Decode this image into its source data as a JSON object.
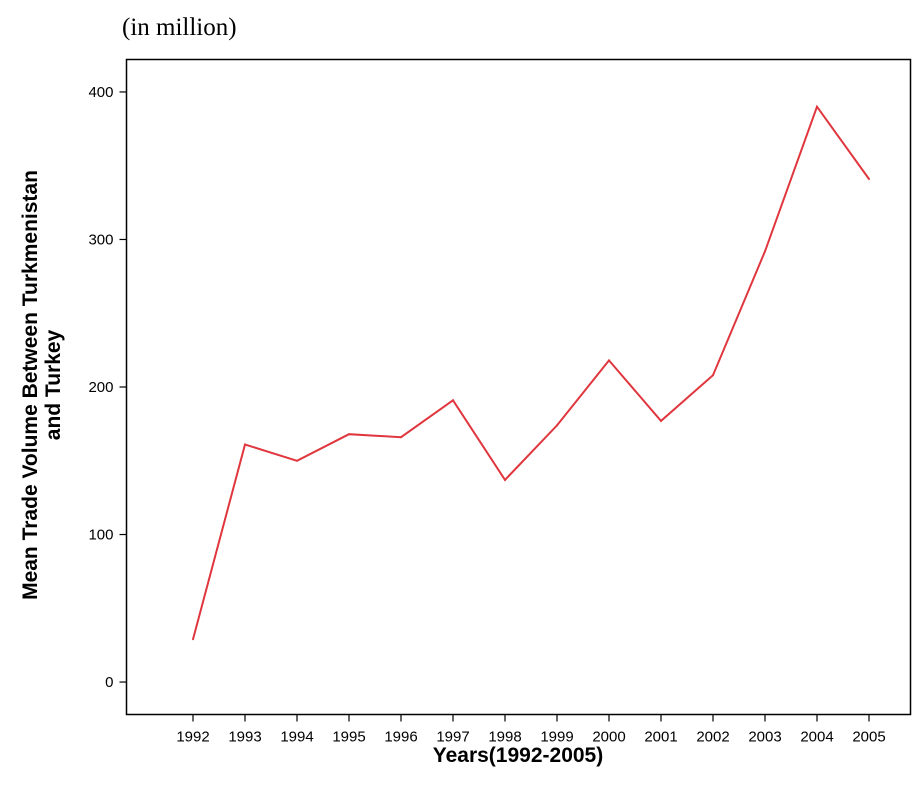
{
  "chart_data": {
    "type": "line",
    "unit_note": "(in million)",
    "title": "",
    "xlabel": "Years(1992-2005)",
    "ylabel_lines": [
      "Mean Trade Volume Between Turkmenistan",
      "and Turkey"
    ],
    "categories": [
      "1992",
      "1993",
      "1994",
      "1995",
      "1996",
      "1997",
      "1998",
      "1999",
      "2000",
      "2001",
      "2002",
      "2003",
      "2004",
      "2005"
    ],
    "series": [
      {
        "values": [
          29,
          161,
          150,
          168,
          166,
          191,
          137,
          174,
          218,
          177,
          208,
          292,
          390,
          341
        ],
        "color": "#e0363e"
      }
    ],
    "ylim": [
      -22,
      422
    ],
    "yticks": [
      "0",
      "100",
      "200",
      "300",
      "400"
    ],
    "grid": false,
    "legend": "none"
  }
}
